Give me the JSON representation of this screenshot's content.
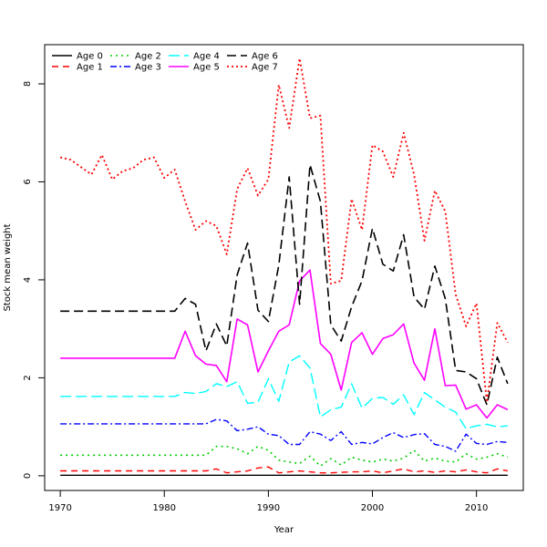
{
  "chart_data": {
    "type": "line",
    "title": "",
    "xlabel": "Year",
    "ylabel": "Stock mean weight",
    "xlim": [
      1968.5,
      2014.5
    ],
    "ylim": [
      -0.3,
      8.8
    ],
    "x_ticks": [
      1970,
      1980,
      1990,
      2000,
      2010
    ],
    "y_ticks": [
      0,
      2,
      4,
      6,
      8
    ],
    "legend_position": "top-left",
    "x": [
      1970,
      1971,
      1972,
      1973,
      1974,
      1975,
      1976,
      1977,
      1978,
      1979,
      1980,
      1981,
      1982,
      1983,
      1984,
      1985,
      1986,
      1987,
      1988,
      1989,
      1990,
      1991,
      1992,
      1993,
      1994,
      1995,
      1996,
      1997,
      1998,
      1999,
      2000,
      2001,
      2002,
      2003,
      2004,
      2005,
      2006,
      2007,
      2008,
      2009,
      2010,
      2011,
      2012,
      2013
    ],
    "series": [
      {
        "name": "Age 0",
        "color": "#000000",
        "dash": "solid",
        "width": 1.4,
        "values": [
          0.01,
          0.01,
          0.01,
          0.01,
          0.01,
          0.01,
          0.01,
          0.01,
          0.01,
          0.01,
          0.01,
          0.01,
          0.01,
          0.01,
          0.01,
          0.01,
          0.01,
          0.01,
          0.01,
          0.01,
          0.01,
          0.01,
          0.01,
          0.01,
          0.01,
          0.01,
          0.01,
          0.01,
          0.01,
          0.01,
          0.01,
          0.01,
          0.01,
          0.01,
          0.01,
          0.01,
          0.01,
          0.01,
          0.01,
          0.01,
          0.01,
          0.01,
          0.01,
          0.01
        ]
      },
      {
        "name": "Age 1",
        "color": "#ff0000",
        "dash": "7,5",
        "width": 1.4,
        "values": [
          0.1,
          0.1,
          0.1,
          0.1,
          0.1,
          0.1,
          0.1,
          0.1,
          0.1,
          0.1,
          0.1,
          0.1,
          0.1,
          0.1,
          0.1,
          0.14,
          0.06,
          0.08,
          0.1,
          0.16,
          0.18,
          0.06,
          0.08,
          0.1,
          0.08,
          0.06,
          0.06,
          0.07,
          0.08,
          0.08,
          0.1,
          0.06,
          0.1,
          0.14,
          0.08,
          0.1,
          0.07,
          0.1,
          0.08,
          0.12,
          0.08,
          0.06,
          0.14,
          0.1
        ]
      },
      {
        "name": "Age 2",
        "color": "#00cd00",
        "dash": "2,4",
        "width": 1.6,
        "values": [
          0.42,
          0.42,
          0.42,
          0.42,
          0.42,
          0.42,
          0.42,
          0.42,
          0.42,
          0.42,
          0.42,
          0.42,
          0.42,
          0.42,
          0.42,
          0.6,
          0.6,
          0.55,
          0.45,
          0.6,
          0.52,
          0.32,
          0.28,
          0.25,
          0.4,
          0.2,
          0.35,
          0.22,
          0.38,
          0.32,
          0.28,
          0.34,
          0.3,
          0.36,
          0.52,
          0.3,
          0.36,
          0.3,
          0.28,
          0.45,
          0.34,
          0.38,
          0.45,
          0.38
        ]
      },
      {
        "name": "Age 3",
        "color": "#0000ff",
        "dash": "7,3,2,3",
        "width": 1.4,
        "values": [
          1.06,
          1.06,
          1.06,
          1.06,
          1.06,
          1.06,
          1.06,
          1.06,
          1.06,
          1.06,
          1.06,
          1.06,
          1.06,
          1.06,
          1.06,
          1.15,
          1.12,
          0.92,
          0.95,
          1.0,
          0.85,
          0.82,
          0.64,
          0.64,
          0.9,
          0.85,
          0.72,
          0.9,
          0.64,
          0.68,
          0.65,
          0.78,
          0.88,
          0.78,
          0.84,
          0.86,
          0.64,
          0.6,
          0.5,
          0.85,
          0.66,
          0.64,
          0.7,
          0.68
        ]
      },
      {
        "name": "Age 4",
        "color": "#00ffff",
        "dash": "12,5",
        "width": 1.4,
        "values": [
          1.62,
          1.62,
          1.62,
          1.62,
          1.62,
          1.62,
          1.62,
          1.62,
          1.62,
          1.62,
          1.62,
          1.62,
          1.7,
          1.68,
          1.72,
          1.88,
          1.82,
          1.92,
          1.48,
          1.5,
          1.98,
          1.52,
          2.32,
          2.45,
          2.2,
          1.2,
          1.35,
          1.4,
          1.88,
          1.38,
          1.58,
          1.6,
          1.46,
          1.65,
          1.25,
          1.7,
          1.55,
          1.4,
          1.3,
          0.96,
          1.02,
          1.05,
          1.0,
          1.02
        ]
      },
      {
        "name": "Age 5",
        "color": "#ff00ff",
        "dash": "solid",
        "width": 1.6,
        "values": [
          2.4,
          2.4,
          2.4,
          2.4,
          2.4,
          2.4,
          2.4,
          2.4,
          2.4,
          2.4,
          2.4,
          2.4,
          2.95,
          2.45,
          2.28,
          2.25,
          1.92,
          3.2,
          3.08,
          2.12,
          2.55,
          2.95,
          3.08,
          3.98,
          4.2,
          2.7,
          2.48,
          1.75,
          2.72,
          2.92,
          2.48,
          2.8,
          2.88,
          3.1,
          2.3,
          1.95,
          3.0,
          1.84,
          1.85,
          1.36,
          1.45,
          1.18,
          1.45,
          1.35
        ]
      },
      {
        "name": "Age 6",
        "color": "#000000",
        "dash": "10,5",
        "width": 1.6,
        "values": [
          3.36,
          3.36,
          3.36,
          3.36,
          3.36,
          3.36,
          3.36,
          3.36,
          3.36,
          3.36,
          3.36,
          3.36,
          3.62,
          3.5,
          2.55,
          3.1,
          2.65,
          4.1,
          4.75,
          3.38,
          3.15,
          4.3,
          6.1,
          3.5,
          6.35,
          5.6,
          3.08,
          2.75,
          3.45,
          3.98,
          5.05,
          4.32,
          4.18,
          4.92,
          3.65,
          3.4,
          4.28,
          3.62,
          2.15,
          2.12,
          1.98,
          1.45,
          2.42,
          1.88
        ]
      },
      {
        "name": "Age 7",
        "color": "#ff0000",
        "dash": "2,3",
        "width": 1.8,
        "values": [
          6.5,
          6.45,
          6.3,
          6.15,
          6.55,
          6.05,
          6.22,
          6.28,
          6.45,
          6.5,
          6.08,
          6.25,
          5.6,
          5.02,
          5.2,
          5.1,
          4.52,
          5.85,
          6.28,
          5.72,
          6.05,
          7.98,
          7.1,
          8.52,
          7.3,
          7.35,
          3.92,
          3.98,
          5.65,
          5.02,
          6.75,
          6.62,
          6.1,
          7.0,
          6.15,
          4.8,
          5.82,
          5.4,
          3.7,
          3.05,
          3.52,
          1.5,
          3.12,
          2.72
        ]
      }
    ]
  }
}
